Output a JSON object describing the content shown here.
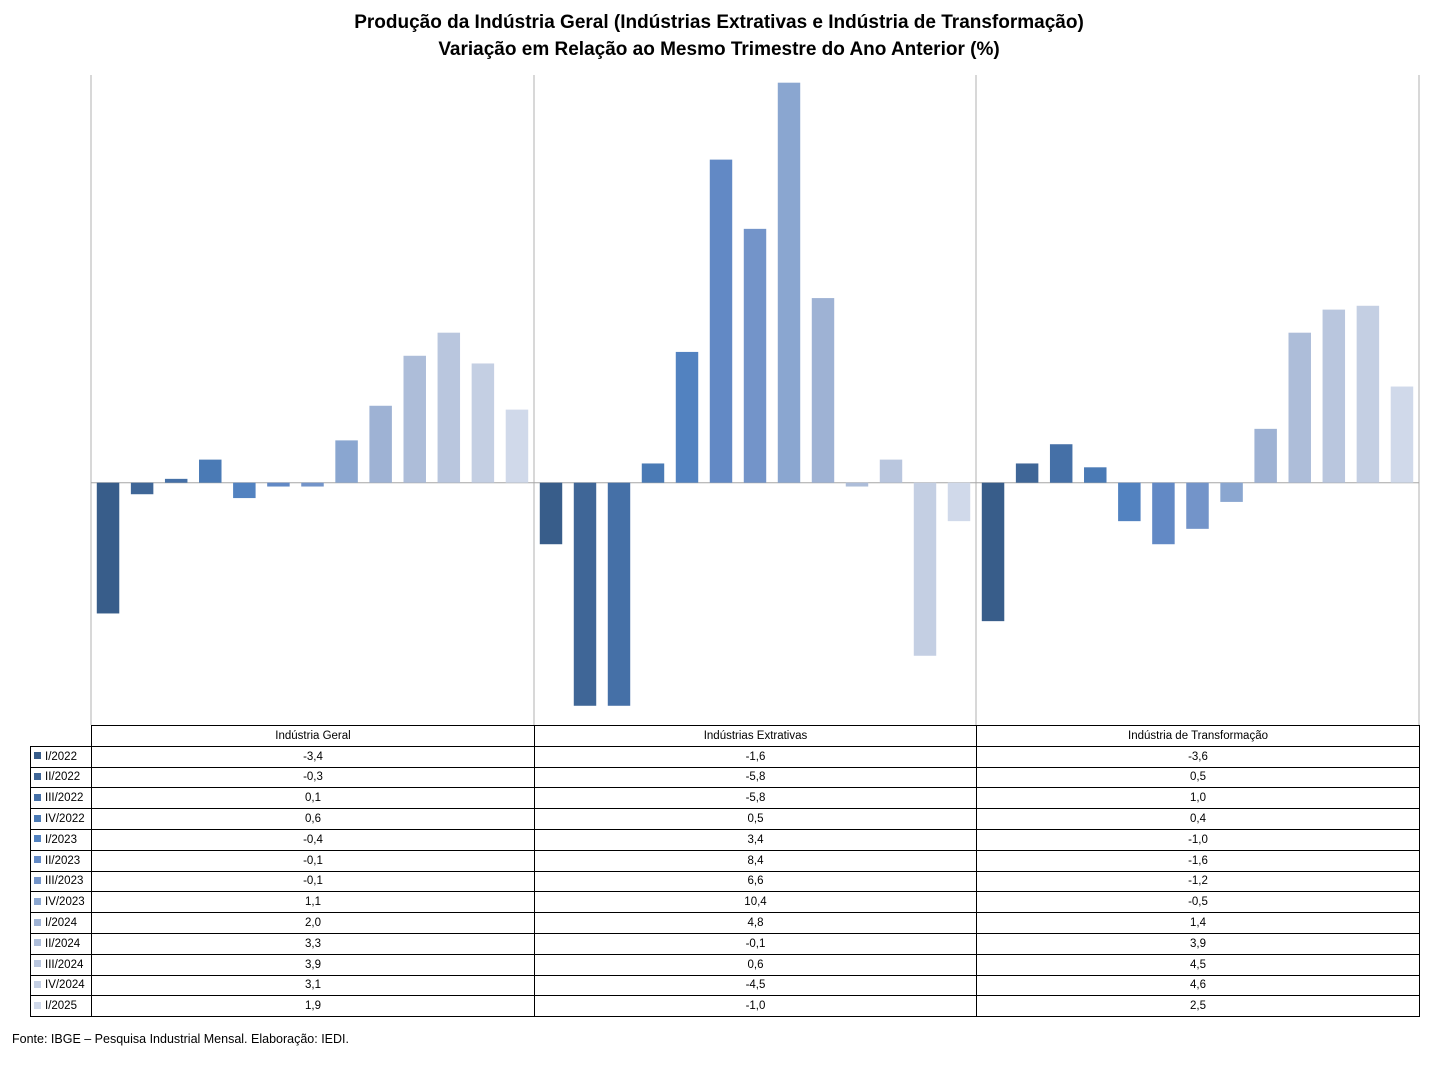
{
  "header": {
    "title": "Produção da Indústria Geral (Indústrias Extrativas e Indústria de Transformação)",
    "subtitle": "Variação em Relação ao Mesmo Trimestre do Ano Anterior (%)"
  },
  "chart_data": {
    "type": "bar",
    "title": "Produção da Indústria Geral (Indústrias Extrativas e Indústria de Transformação)",
    "subtitle": "Variação em Relação ao Mesmo Trimestre do Ano Anterior (%)",
    "categories": [
      "Indústria Geral",
      "Indústrias Extrativas",
      "Indústria de Transformação"
    ],
    "ylim": [
      -6.3,
      10.6
    ],
    "grid": false,
    "legend": "table-left",
    "series": [
      {
        "name": "I/2022",
        "color": "#385d8a",
        "values": [
          -3.4,
          -1.6,
          -3.6
        ],
        "labels": [
          "-3,4",
          "-1,6",
          "-3,6"
        ]
      },
      {
        "name": "II/2022",
        "color": "#3f6697",
        "values": [
          -0.3,
          -5.8,
          0.5
        ],
        "labels": [
          "-0,3",
          "-5,8",
          "0,5"
        ]
      },
      {
        "name": "III/2022",
        "color": "#4570a7",
        "values": [
          0.1,
          -5.8,
          1.0
        ],
        "labels": [
          "0,1",
          "-5,8",
          "1,0"
        ]
      },
      {
        "name": "IV/2022",
        "color": "#4a7ab5",
        "values": [
          0.6,
          0.5,
          0.4
        ],
        "labels": [
          "0,6",
          "0,5",
          "0,4"
        ]
      },
      {
        "name": "I/2023",
        "color": "#5282c0",
        "values": [
          -0.4,
          3.4,
          -1.0
        ],
        "labels": [
          "-0,4",
          "3,4",
          "-1,0"
        ]
      },
      {
        "name": "II/2023",
        "color": "#6289c5",
        "values": [
          -0.1,
          8.4,
          -1.6
        ],
        "labels": [
          "-0,1",
          "8,4",
          "-1,6"
        ]
      },
      {
        "name": "III/2023",
        "color": "#7394c9",
        "values": [
          -0.1,
          6.6,
          -1.2
        ],
        "labels": [
          "-0,1",
          "6,6",
          "-1,2"
        ]
      },
      {
        "name": "IV/2023",
        "color": "#8aa6d0",
        "values": [
          1.1,
          10.4,
          -0.5
        ],
        "labels": [
          "1,1",
          "10,4",
          "-0,5"
        ]
      },
      {
        "name": "I/2024",
        "color": "#9eb2d4",
        "values": [
          2.0,
          4.8,
          1.4
        ],
        "labels": [
          "2,0",
          "4,8",
          "1,4"
        ]
      },
      {
        "name": "II/2024",
        "color": "#adbdd9",
        "values": [
          3.3,
          -0.1,
          3.9
        ],
        "labels": [
          "3,3",
          "-0,1",
          "3,9"
        ]
      },
      {
        "name": "III/2024",
        "color": "#b9c6de",
        "values": [
          3.9,
          0.6,
          4.5
        ],
        "labels": [
          "3,9",
          "0,6",
          "4,5"
        ]
      },
      {
        "name": "IV/2024",
        "color": "#c4cfe3",
        "values": [
          3.1,
          -4.5,
          4.6
        ],
        "labels": [
          "3,1",
          "-4,5",
          "4,6"
        ]
      },
      {
        "name": "I/2025",
        "color": "#d0d9ea",
        "values": [
          1.9,
          -1.0,
          2.5
        ],
        "labels": [
          "1,9",
          "-1,0",
          "2,5"
        ]
      }
    ]
  },
  "footer": {
    "source": "Fonte: IBGE – Pesquisa Industrial Mensal. Elaboração: IEDI."
  }
}
